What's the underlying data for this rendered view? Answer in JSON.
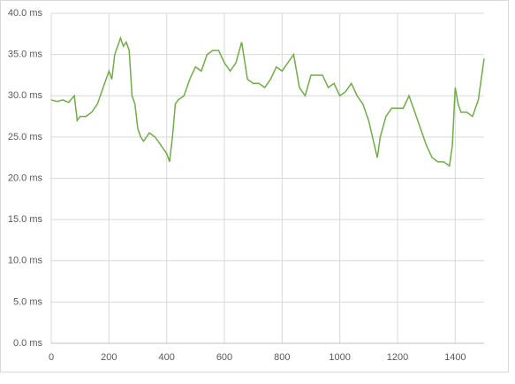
{
  "chart_data": {
    "type": "line",
    "x": [
      0,
      20,
      40,
      60,
      80,
      90,
      100,
      120,
      140,
      160,
      180,
      200,
      210,
      220,
      240,
      250,
      260,
      270,
      280,
      290,
      300,
      310,
      320,
      340,
      360,
      380,
      400,
      410,
      420,
      430,
      440,
      460,
      480,
      500,
      520,
      540,
      560,
      580,
      600,
      620,
      640,
      660,
      680,
      700,
      720,
      740,
      760,
      780,
      800,
      820,
      840,
      860,
      880,
      900,
      920,
      940,
      960,
      980,
      1000,
      1020,
      1040,
      1060,
      1080,
      1100,
      1120,
      1130,
      1140,
      1160,
      1180,
      1200,
      1220,
      1240,
      1260,
      1280,
      1300,
      1320,
      1340,
      1360,
      1380,
      1390,
      1400,
      1410,
      1420,
      1440,
      1460,
      1480,
      1490,
      1500
    ],
    "series": [
      {
        "color": "#70ad47",
        "values": [
          29.5,
          29.3,
          29.5,
          29.2,
          30,
          27,
          27.5,
          27.5,
          28,
          29,
          31,
          33,
          32,
          35,
          37,
          36,
          36.5,
          35.5,
          30,
          29,
          26,
          25,
          24.5,
          25.5,
          25,
          24,
          23,
          22,
          25,
          29,
          29.5,
          30,
          32,
          33.5,
          33,
          35,
          35.5,
          35.5,
          34,
          33,
          34,
          36.5,
          32,
          31.5,
          31.5,
          31,
          32,
          33.5,
          33,
          34,
          35,
          31,
          30,
          32.5,
          32.5,
          32.5,
          31,
          31.5,
          30,
          30.5,
          31.5,
          30,
          29,
          27,
          24,
          22.5,
          25,
          27.5,
          28.5,
          28.5,
          28.5,
          30,
          28,
          26,
          24,
          22.5,
          22,
          22,
          21.5,
          24,
          31,
          29,
          28,
          28,
          27.5,
          29.5,
          32,
          34.5
        ]
      }
    ],
    "xlim": [
      0,
      1500
    ],
    "xticks": [
      0,
      200,
      400,
      600,
      800,
      1000,
      1200,
      1400
    ],
    "ylim": [
      0,
      40
    ],
    "yticks": [
      {
        "value": 0,
        "label": "0.0 ms"
      },
      {
        "value": 5,
        "label": "5.0 ms"
      },
      {
        "value": 10,
        "label": "10.0 ms"
      },
      {
        "value": 15,
        "label": "15.0 ms"
      },
      {
        "value": 20,
        "label": "20.0 ms"
      },
      {
        "value": 25,
        "label": "25.0 ms"
      },
      {
        "value": 30,
        "label": "30.0 ms"
      },
      {
        "value": 35,
        "label": "35.0 ms"
      },
      {
        "value": 40,
        "label": "40.0 ms"
      }
    ],
    "grid": true
  }
}
